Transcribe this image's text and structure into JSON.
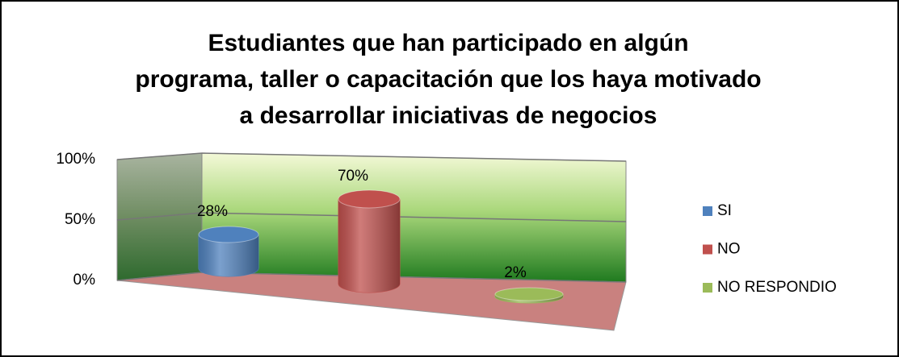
{
  "chart_data": {
    "type": "bar3d",
    "title": "Estudiantes que han participado en algún programa, taller o capacitación que los haya motivado a desarrollar iniciativas de negocios",
    "categories": [
      null
    ],
    "series": [
      {
        "name": "SI",
        "color": "#4f81bd",
        "values": [
          28
        ],
        "value_labels": [
          "28%"
        ]
      },
      {
        "name": "NO",
        "color": "#c0504d",
        "values": [
          70
        ],
        "value_labels": [
          "70%"
        ]
      },
      {
        "name": "NO RESPONDIO",
        "color": "#9bbb59",
        "values": [
          2
        ],
        "value_labels": [
          "2%"
        ]
      }
    ],
    "ylim": [
      0,
      100
    ],
    "yticks": [
      {
        "value": 0,
        "label": "0%"
      },
      {
        "value": 50,
        "label": "50%"
      },
      {
        "value": 100,
        "label": "100%"
      }
    ],
    "grid": true,
    "legend": "right"
  }
}
